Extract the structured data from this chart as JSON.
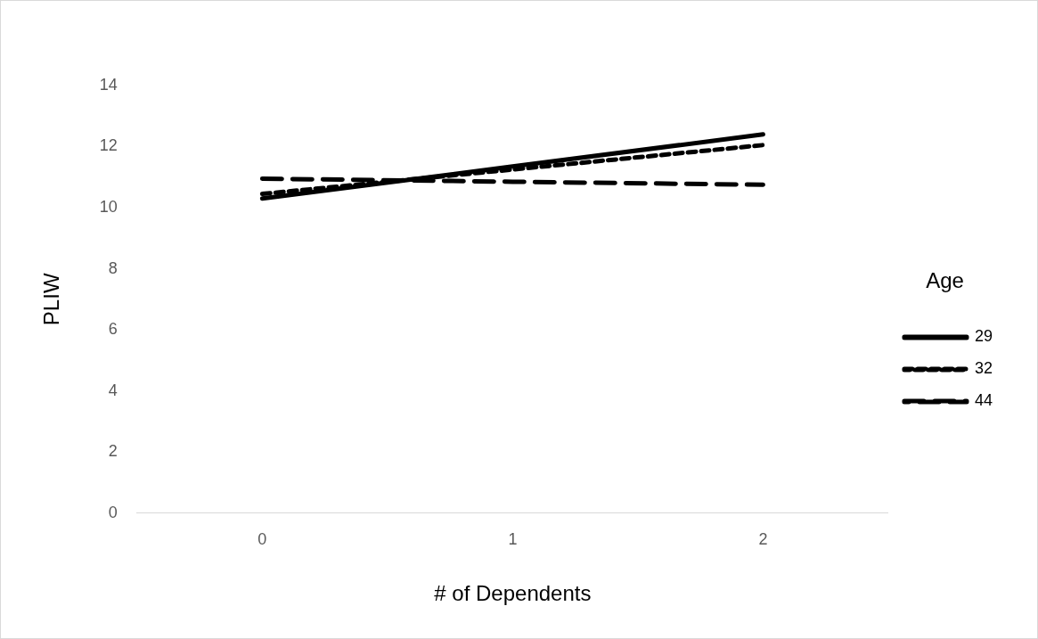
{
  "chart_data": {
    "type": "line",
    "xlabel": "# of Dependents",
    "ylabel": "PLIW",
    "legend_title": "Age",
    "categories": [
      "0",
      "1",
      "2"
    ],
    "series": [
      {
        "name": "29",
        "color": "#000000",
        "line_style": "solid",
        "values": [
          10.3,
          11.35,
          12.4
        ]
      },
      {
        "name": "32",
        "color": "#000000",
        "line_style": "dotted",
        "values": [
          10.45,
          11.25,
          12.05
        ]
      },
      {
        "name": "44",
        "color": "#000000",
        "line_style": "dashed",
        "values": [
          10.95,
          10.85,
          10.75
        ]
      }
    ],
    "ylim": [
      0,
      14
    ],
    "yticks": [
      0,
      2,
      4,
      6,
      8,
      10,
      12,
      14
    ],
    "grid": false,
    "legend": "right",
    "marker": "none"
  }
}
